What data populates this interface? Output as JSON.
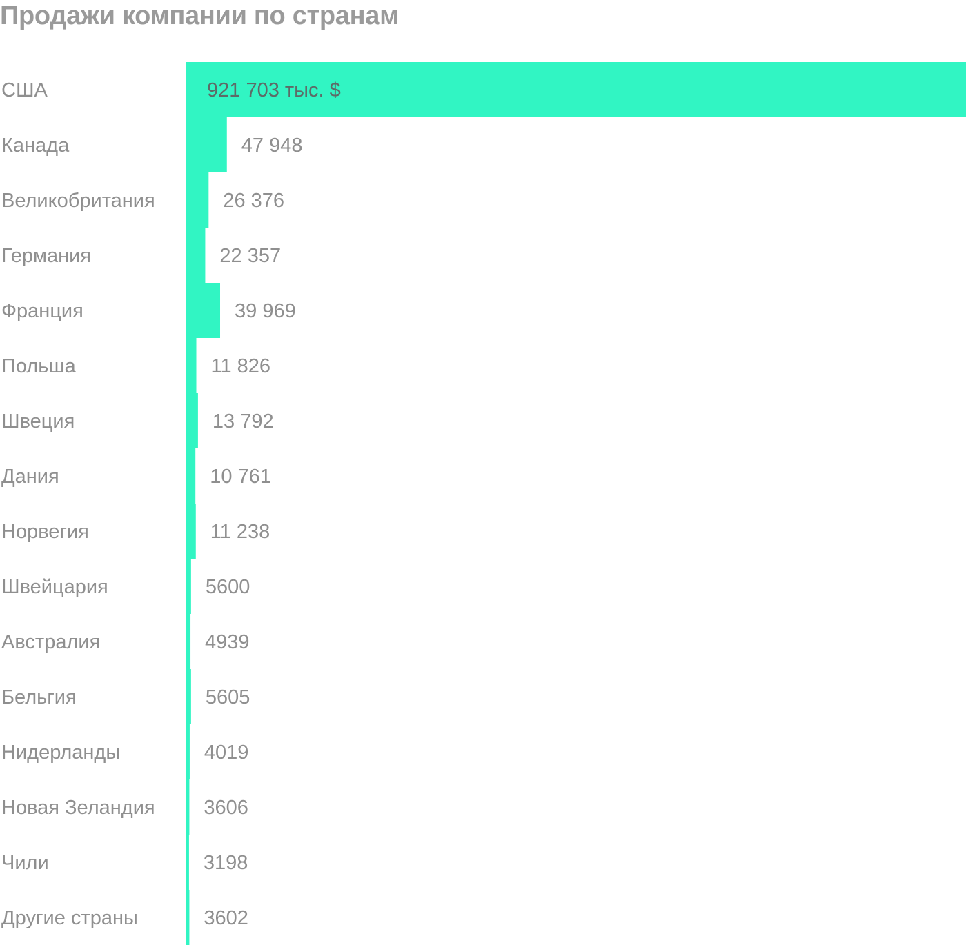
{
  "chart_data": {
    "type": "bar",
    "orientation": "horizontal",
    "title": "Продажи компании по странам",
    "categories": [
      "США",
      "Канада",
      "Великобритания",
      "Германия",
      "Франция",
      "Польша",
      "Швеция",
      "Дания",
      "Норвегия",
      "Швейцария",
      "Австралия",
      "Бельгия",
      "Нидерланды",
      "Новая Зеландия",
      "Чили",
      "Другие страны"
    ],
    "values": [
      921703,
      47948,
      26376,
      22357,
      39969,
      11826,
      13792,
      10761,
      11238,
      5600,
      4939,
      5605,
      4019,
      3606,
      3198,
      3602
    ],
    "value_labels": [
      "921 703 тыс. $",
      "47 948",
      "26 376",
      "22 357",
      "39 969",
      "11 826",
      "13 792",
      "10 761",
      "11 238",
      "5600",
      "4939",
      "5605",
      "4019",
      "3606",
      "3198",
      "3602"
    ],
    "xlim": [
      0,
      921703
    ],
    "bar_color": "#31f5c3",
    "grid": false,
    "legend": "none"
  }
}
